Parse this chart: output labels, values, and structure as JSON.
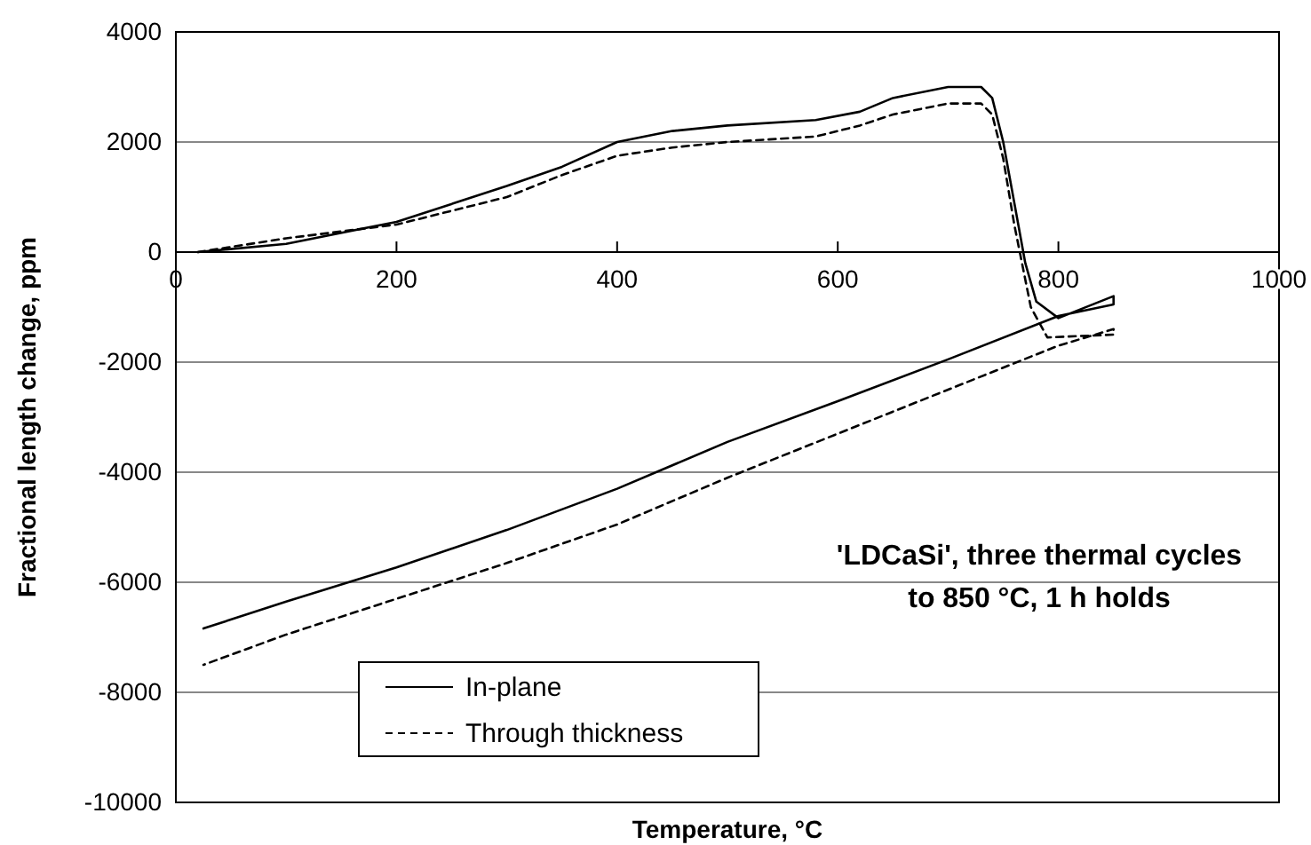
{
  "chart_data": {
    "type": "line",
    "xlabel": "Temperature, °C",
    "ylabel": "Fractional length change, ppm",
    "annotations": [
      "'LDCaSi', three thermal cycles\nto 850 °C, 1 h holds"
    ],
    "xlim": [
      0,
      1000
    ],
    "xticks": [
      0,
      200,
      400,
      600,
      800,
      1000
    ],
    "ylim": [
      -10000,
      4000
    ],
    "yticks": [
      -10000,
      -8000,
      -6000,
      -4000,
      -2000,
      0,
      2000,
      4000
    ],
    "grid": "y",
    "legend": "bottom left",
    "series": [
      {
        "name": "In-plane",
        "color": "#000000",
        "line_style": "solid",
        "x": [
          20,
          100,
          200,
          300,
          350,
          400,
          450,
          500,
          580,
          620,
          650,
          700,
          730,
          740,
          750,
          760,
          770,
          780,
          800,
          850,
          850,
          800,
          700,
          600,
          500,
          400,
          300,
          200,
          100,
          25
        ],
        "values": [
          0,
          150,
          550,
          1200,
          1550,
          2000,
          2200,
          2300,
          2400,
          2550,
          2800,
          3000,
          3000,
          2800,
          2000,
          900,
          -200,
          -900,
          -1200,
          -800,
          -950,
          -1160,
          -1950,
          -2710,
          -3450,
          -4300,
          -5050,
          -5730,
          -6350,
          -6840
        ]
      },
      {
        "name": "Through thickness",
        "color": "#000000",
        "line_style": "dashed",
        "x": [
          20,
          100,
          200,
          300,
          350,
          400,
          450,
          500,
          580,
          620,
          650,
          700,
          730,
          740,
          750,
          760,
          775,
          790,
          850,
          850,
          800,
          700,
          600,
          500,
          400,
          300,
          200,
          100,
          25
        ],
        "values": [
          0,
          250,
          500,
          1000,
          1400,
          1750,
          1900,
          2000,
          2100,
          2300,
          2500,
          2700,
          2700,
          2500,
          1700,
          500,
          -1000,
          -1550,
          -1500,
          -1400,
          -1700,
          -2500,
          -3300,
          -4100,
          -4950,
          -5650,
          -6300,
          -6950,
          -7500
        ]
      }
    ]
  }
}
